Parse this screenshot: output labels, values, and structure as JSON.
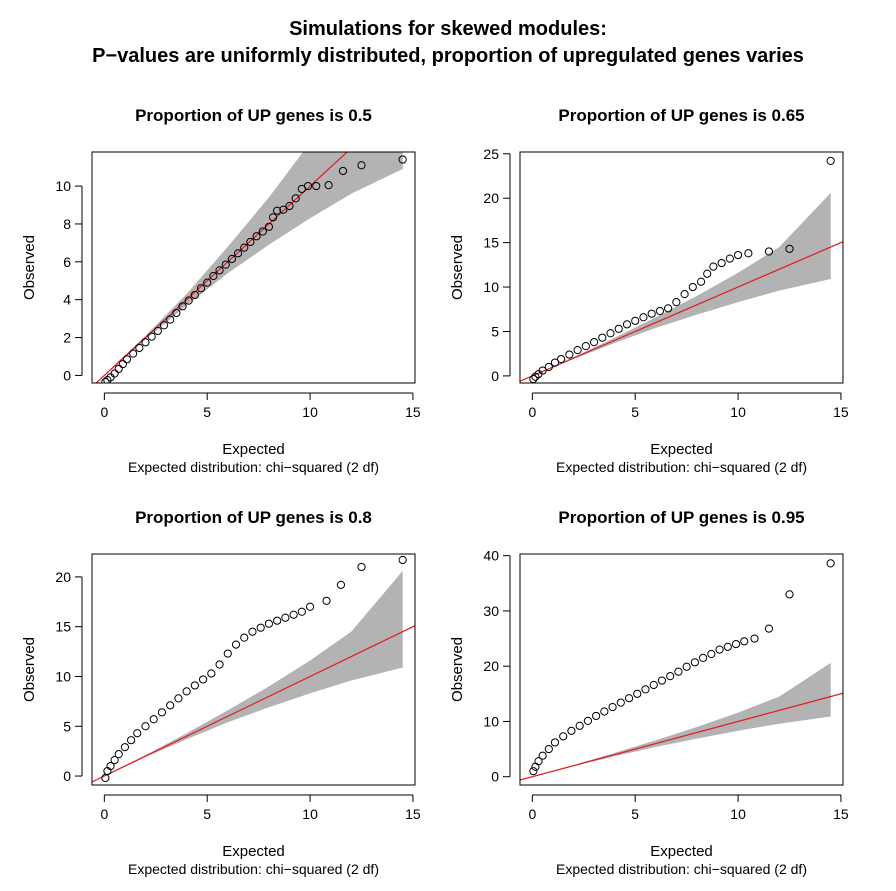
{
  "figure": {
    "title_line1": "Simulations for skewed modules:",
    "title_line2": "P−values are uniformly distributed, proportion of upregulated genes varies"
  },
  "colors": {
    "band": "#b3b3b3",
    "line": "#e31a1c",
    "points": "#000000",
    "axis": "#000000"
  },
  "chart_data": [
    {
      "type": "scatter",
      "title": "Proportion of UP genes is  0.5",
      "xlabel": "Expected",
      "subtitle": "Expected distribution: chi−squared (2 df)",
      "ylabel": "Observed",
      "xlim": [
        -0.6,
        15.1
      ],
      "ylim": [
        -0.4,
        11.8
      ],
      "xticks": [
        0,
        5,
        10,
        15
      ],
      "yticks": [
        0,
        2,
        4,
        6,
        8,
        10
      ],
      "reference_line": {
        "slope": 1,
        "intercept": 0
      },
      "confidence_band": {
        "x": [
          0.3,
          2,
          4,
          6,
          8,
          10,
          12,
          14.5
        ],
        "lower": [
          0.25,
          1.9,
          3.7,
          5.4,
          6.9,
          8.3,
          9.6,
          10.9
        ],
        "upper": [
          0.35,
          2.1,
          4.3,
          6.8,
          9.4,
          12.3,
          15.3,
          20.6
        ]
      },
      "points_x": [
        0.05,
        0.15,
        0.3,
        0.5,
        0.7,
        0.9,
        1.1,
        1.4,
        1.7,
        2.0,
        2.3,
        2.6,
        2.9,
        3.2,
        3.5,
        3.8,
        4.1,
        4.4,
        4.7,
        5.0,
        5.3,
        5.6,
        5.9,
        6.2,
        6.5,
        6.8,
        7.1,
        7.4,
        7.7,
        8.0,
        8.2,
        8.4,
        8.7,
        9.0,
        9.3,
        9.6,
        9.9,
        10.3,
        10.9,
        11.6,
        12.5,
        14.5
      ],
      "points_y": [
        -0.35,
        -0.25,
        -0.1,
        0.1,
        0.35,
        0.6,
        0.85,
        1.15,
        1.45,
        1.75,
        2.05,
        2.35,
        2.65,
        2.95,
        3.3,
        3.65,
        3.95,
        4.25,
        4.6,
        4.9,
        5.25,
        5.55,
        5.85,
        6.15,
        6.45,
        6.75,
        7.05,
        7.35,
        7.6,
        7.85,
        8.35,
        8.7,
        8.75,
        8.95,
        9.35,
        9.85,
        10.0,
        10.0,
        10.05,
        10.8,
        11.1,
        11.4
      ]
    },
    {
      "type": "scatter",
      "title": "Proportion of UP genes is  0.65",
      "xlabel": "Expected",
      "subtitle": "Expected distribution: chi−squared (2 df)",
      "ylabel": "Observed",
      "xlim": [
        -0.6,
        15.1
      ],
      "ylim": [
        -0.8,
        25.2
      ],
      "xticks": [
        0,
        5,
        10,
        15
      ],
      "yticks": [
        0,
        5,
        10,
        15,
        20,
        25
      ],
      "reference_line": {
        "slope": 1,
        "intercept": 0
      },
      "confidence_band": {
        "x": [
          0.3,
          2,
          4,
          6,
          8,
          10,
          12,
          14.5
        ],
        "lower": [
          0.25,
          1.9,
          3.7,
          5.4,
          6.9,
          8.3,
          9.6,
          10.9
        ],
        "upper": [
          0.35,
          2.1,
          4.3,
          6.6,
          9.0,
          11.6,
          14.5,
          20.6
        ]
      },
      "points_x": [
        0.05,
        0.15,
        0.3,
        0.5,
        0.8,
        1.1,
        1.4,
        1.8,
        2.2,
        2.6,
        3.0,
        3.4,
        3.8,
        4.2,
        4.6,
        5.0,
        5.4,
        5.8,
        6.2,
        6.6,
        7.0,
        7.4,
        7.8,
        8.2,
        8.5,
        8.8,
        9.2,
        9.6,
        10.0,
        10.5,
        11.5,
        12.5,
        14.5
      ],
      "points_y": [
        -0.35,
        -0.1,
        0.2,
        0.6,
        1.0,
        1.5,
        1.9,
        2.4,
        2.9,
        3.35,
        3.8,
        4.3,
        4.8,
        5.3,
        5.8,
        6.2,
        6.6,
        7.0,
        7.3,
        7.6,
        8.3,
        9.2,
        10.0,
        10.6,
        11.5,
        12.3,
        12.7,
        13.2,
        13.6,
        13.8,
        14.0,
        14.3,
        24.2
      ]
    },
    {
      "type": "scatter",
      "title": "Proportion of UP genes is  0.8",
      "xlabel": "Expected",
      "subtitle": "Expected distribution: chi−squared (2 df)",
      "ylabel": "Observed",
      "xlim": [
        -0.6,
        15.1
      ],
      "ylim": [
        -0.9,
        22.3
      ],
      "xticks": [
        0,
        5,
        10,
        15
      ],
      "yticks": [
        0,
        5,
        10,
        15,
        20
      ],
      "reference_line": {
        "slope": 1,
        "intercept": 0
      },
      "confidence_band": {
        "x": [
          0.3,
          2,
          4,
          6,
          8,
          10,
          12,
          14.5
        ],
        "lower": [
          0.25,
          1.9,
          3.7,
          5.4,
          6.9,
          8.3,
          9.6,
          10.9
        ],
        "upper": [
          0.35,
          2.1,
          4.3,
          6.6,
          9.0,
          11.6,
          14.5,
          20.6
        ]
      },
      "points_x": [
        0.05,
        0.15,
        0.3,
        0.5,
        0.7,
        1.0,
        1.3,
        1.6,
        2.0,
        2.4,
        2.8,
        3.2,
        3.6,
        4.0,
        4.4,
        4.8,
        5.2,
        5.6,
        6.0,
        6.4,
        6.8,
        7.2,
        7.6,
        8.0,
        8.4,
        8.8,
        9.2,
        9.6,
        10.0,
        10.8,
        11.5,
        12.5,
        14.5
      ],
      "points_y": [
        -0.2,
        0.5,
        1.0,
        1.6,
        2.2,
        2.9,
        3.6,
        4.3,
        5.0,
        5.7,
        6.4,
        7.1,
        7.8,
        8.5,
        9.1,
        9.7,
        10.3,
        11.2,
        12.3,
        13.2,
        13.9,
        14.5,
        14.9,
        15.3,
        15.6,
        15.9,
        16.2,
        16.5,
        17.0,
        17.6,
        19.2,
        21.0,
        21.7
      ]
    },
    {
      "type": "scatter",
      "title": "Proportion of UP genes is  0.95",
      "xlabel": "Expected",
      "subtitle": "Expected distribution: chi−squared (2 df)",
      "ylabel": "Observed",
      "xlim": [
        -0.6,
        15.1
      ],
      "ylim": [
        -1.5,
        40.3
      ],
      "xticks": [
        0,
        5,
        10,
        15
      ],
      "yticks": [
        0,
        10,
        20,
        30,
        40
      ],
      "reference_line": {
        "slope": 1,
        "intercept": 0
      },
      "confidence_band": {
        "x": [
          0.3,
          2,
          4,
          6,
          8,
          10,
          12,
          14.5
        ],
        "lower": [
          0.25,
          1.9,
          3.7,
          5.4,
          6.9,
          8.3,
          9.6,
          10.9
        ],
        "upper": [
          0.35,
          2.1,
          4.3,
          6.6,
          9.0,
          11.6,
          14.5,
          20.6
        ]
      },
      "points_x": [
        0.05,
        0.15,
        0.3,
        0.5,
        0.8,
        1.1,
        1.5,
        1.9,
        2.3,
        2.7,
        3.1,
        3.5,
        3.9,
        4.3,
        4.7,
        5.1,
        5.5,
        5.9,
        6.3,
        6.7,
        7.1,
        7.5,
        7.9,
        8.3,
        8.7,
        9.1,
        9.5,
        9.9,
        10.3,
        10.8,
        11.5,
        12.5,
        14.5
      ],
      "points_y": [
        1.0,
        1.8,
        2.8,
        3.8,
        5.0,
        6.2,
        7.3,
        8.3,
        9.2,
        10.1,
        11.0,
        11.8,
        12.6,
        13.4,
        14.2,
        15.0,
        15.8,
        16.6,
        17.4,
        18.2,
        19.0,
        19.9,
        20.7,
        21.5,
        22.2,
        23.0,
        23.5,
        24.0,
        24.5,
        25.0,
        26.8,
        33.0,
        38.6
      ]
    }
  ]
}
